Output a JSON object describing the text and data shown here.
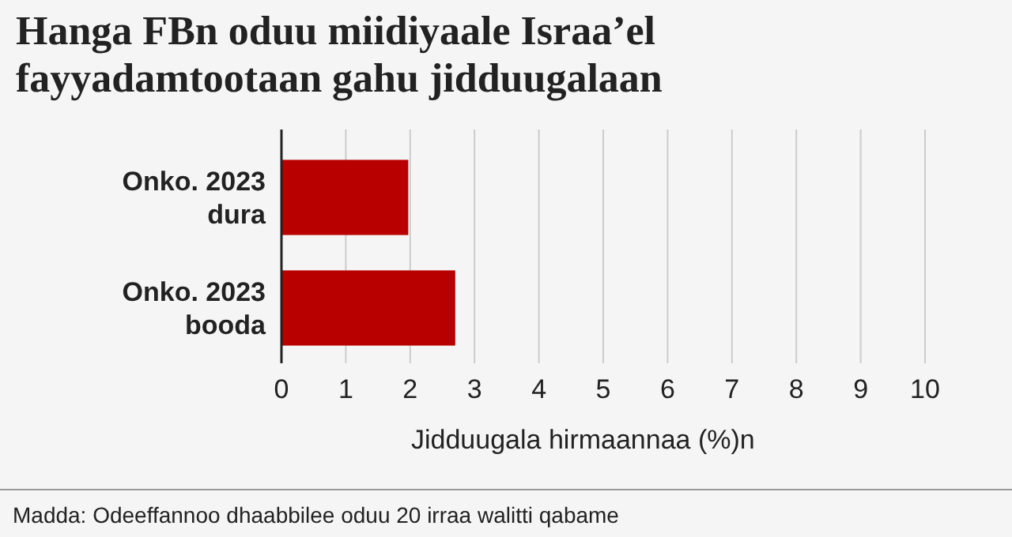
{
  "chart_data": {
    "type": "bar",
    "orientation": "horizontal",
    "title": "Hanga FBn oduu miidiyaale Israa’el fayyadamtootaan gahu jidduugalaan",
    "categories": [
      "Onko. 2023 dura",
      "Onko. 2023 booda"
    ],
    "values": [
      1.97,
      2.7
    ],
    "color": "#b80000",
    "xlabel": "Jidduugala hirmaannaa (%)n",
    "xlim": [
      0,
      10
    ],
    "xticks": [
      0,
      1,
      2,
      3,
      4,
      5,
      6,
      7,
      8,
      9,
      10
    ],
    "grid": "x",
    "annotations": [
      "Madda: Odeeffannoo dhaabbilee oduu 20 irraa walitti qabame"
    ]
  }
}
